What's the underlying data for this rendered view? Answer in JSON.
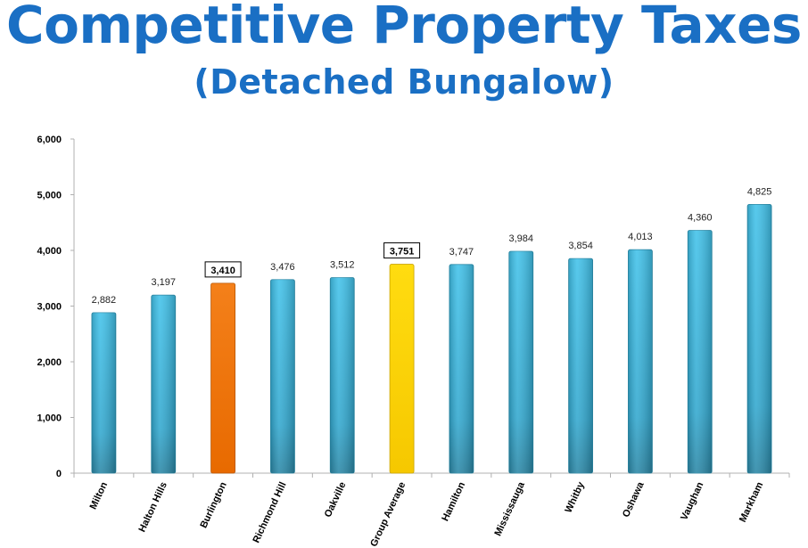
{
  "page": {
    "title": "Competitive Property Taxes",
    "subtitle": "(Detached Bungalow)"
  },
  "chart_data": {
    "type": "bar",
    "title": "Competitive Property Taxes",
    "subtitle": "(Detached Bungalow)",
    "xlabel": "",
    "ylabel": "",
    "ylim": [
      0,
      6000
    ],
    "yticks": [
      "0",
      "1,000",
      "2,000",
      "3,000",
      "4,000",
      "5,000",
      "6,000"
    ],
    "grid": false,
    "legend": "none",
    "categories": [
      "Milton",
      "Halton Hills",
      "Burlington",
      "Richmond Hill",
      "Oakville",
      "Group Average",
      "Hamilton",
      "Mississauga",
      "Whitby",
      "Oshawa",
      "Vaughan",
      "Markham"
    ],
    "values": [
      2882,
      3197,
      3410,
      3476,
      3512,
      3751,
      3747,
      3984,
      3854,
      4013,
      4360,
      4825
    ],
    "labels": [
      "2,882",
      "3,197",
      "3,410",
      "3,476",
      "3,512",
      "3,751",
      "3,747",
      "3,984",
      "3,854",
      "4,013",
      "4,360",
      "4,825"
    ],
    "highlight": {
      "Burlington": "orange",
      "Group Average": "yellow"
    },
    "colors": {
      "default": "#3bb6e0",
      "default_dark": "#2a8aa8",
      "orange": "#f07a10",
      "orange_dark": "#d05a00",
      "yellow": "#ffd800",
      "yellow_dark": "#f0c000",
      "title": "#1a6fc4"
    }
  }
}
